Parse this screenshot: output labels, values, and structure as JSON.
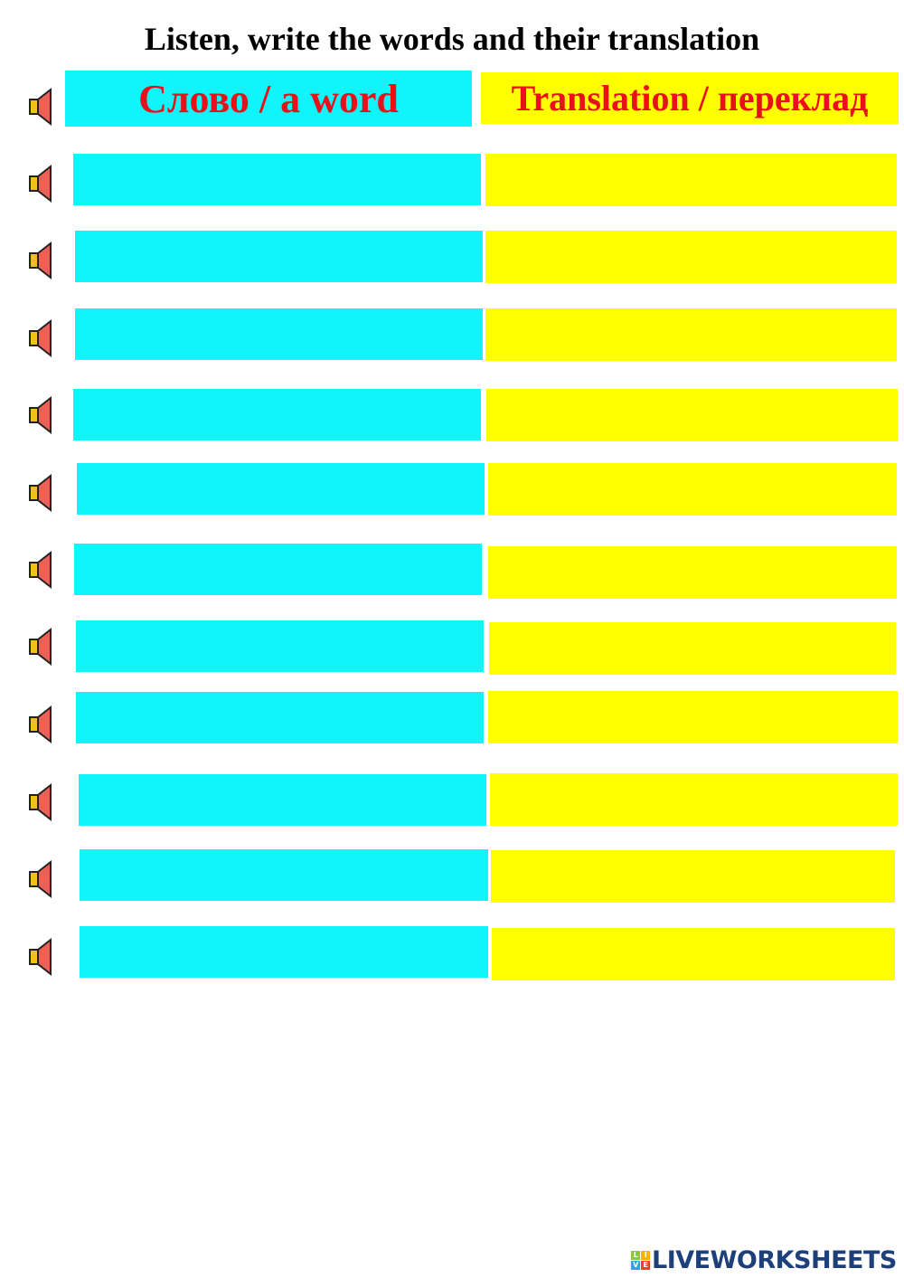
{
  "title": "Listen, write the words and their translation",
  "headers": {
    "word": "Слово / a word",
    "translation": "Translation / переклад"
  },
  "rows": [
    {
      "word": "",
      "translation": ""
    },
    {
      "word": "",
      "translation": ""
    },
    {
      "word": "",
      "translation": ""
    },
    {
      "word": "",
      "translation": ""
    },
    {
      "word": "",
      "translation": ""
    },
    {
      "word": "",
      "translation": ""
    },
    {
      "word": "",
      "translation": ""
    },
    {
      "word": "",
      "translation": ""
    },
    {
      "word": "",
      "translation": ""
    },
    {
      "word": "",
      "translation": ""
    },
    {
      "word": "",
      "translation": ""
    }
  ],
  "colors": {
    "word_box": "#0ff5fb",
    "translation_box": "#ffff00",
    "header_text": "#e8101a",
    "speaker_body": "#f0c020",
    "speaker_cone": "#ee6055"
  },
  "icons": {
    "audio": "speaker-icon"
  },
  "footer": {
    "logo_text": "LIVEWORKSHEETS",
    "logo_letters": [
      "L",
      "I",
      "V",
      "E"
    ]
  }
}
